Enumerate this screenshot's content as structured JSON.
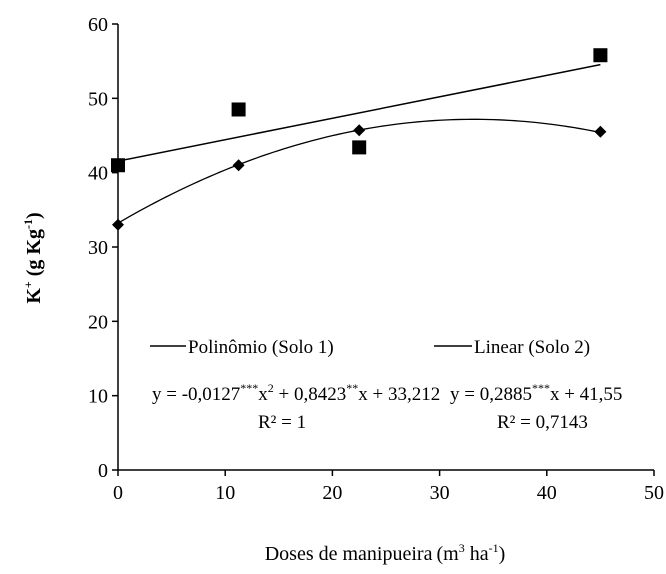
{
  "chart_data": {
    "type": "scatter",
    "xlabel": "Doses de manipueira",
    "xlabel_unit": "(m",
    "xlabel_unit_exp": "3",
    "xlabel_unit_mid": " ha",
    "xlabel_unit_exp2": "-1",
    "xlabel_unit_end": ")",
    "ylabel_main": "K",
    "ylabel_sup1": "+",
    "ylabel_mid": " (g Kg",
    "ylabel_sup2": "-1",
    "ylabel_end": ")",
    "xlim": [
      0,
      50
    ],
    "ylim": [
      0,
      60
    ],
    "xticks": [
      "0",
      "10",
      "20",
      "30",
      "40",
      "50"
    ],
    "yticks": [
      "0",
      "10",
      "20",
      "30",
      "40",
      "50",
      "60"
    ],
    "grid": false,
    "series": [
      {
        "name": "Polinômio (Solo 1)",
        "marker": "diamond",
        "points": [
          {
            "x": 0,
            "y": 33.0
          },
          {
            "x": 11.25,
            "y": 41.0
          },
          {
            "x": 22.5,
            "y": 45.7
          },
          {
            "x": 45,
            "y": 45.5
          }
        ],
        "fit": {
          "type": "polynomial",
          "a": -0.0127,
          "b": 0.8423,
          "c": 33.212
        },
        "equation": {
          "p1": "y = -0,0127",
          "s1": "***",
          "p2": "x",
          "s2": "2",
          "p3": " + 0,8423",
          "s3": "**",
          "p4": "x + 33,212"
        },
        "r2": "R² = 1"
      },
      {
        "name": "Linear (Solo 2)",
        "marker": "square",
        "points": [
          {
            "x": 0,
            "y": 41.0
          },
          {
            "x": 11.25,
            "y": 48.5
          },
          {
            "x": 22.5,
            "y": 43.4
          },
          {
            "x": 45,
            "y": 55.8
          }
        ],
        "fit": {
          "type": "linear",
          "slope": 0.2885,
          "intercept": 41.55
        },
        "equation": {
          "p1": "y = 0,2885",
          "s1": "***",
          "p2": "x + 41,55"
        },
        "r2": "R² = 0,7143"
      }
    ]
  }
}
